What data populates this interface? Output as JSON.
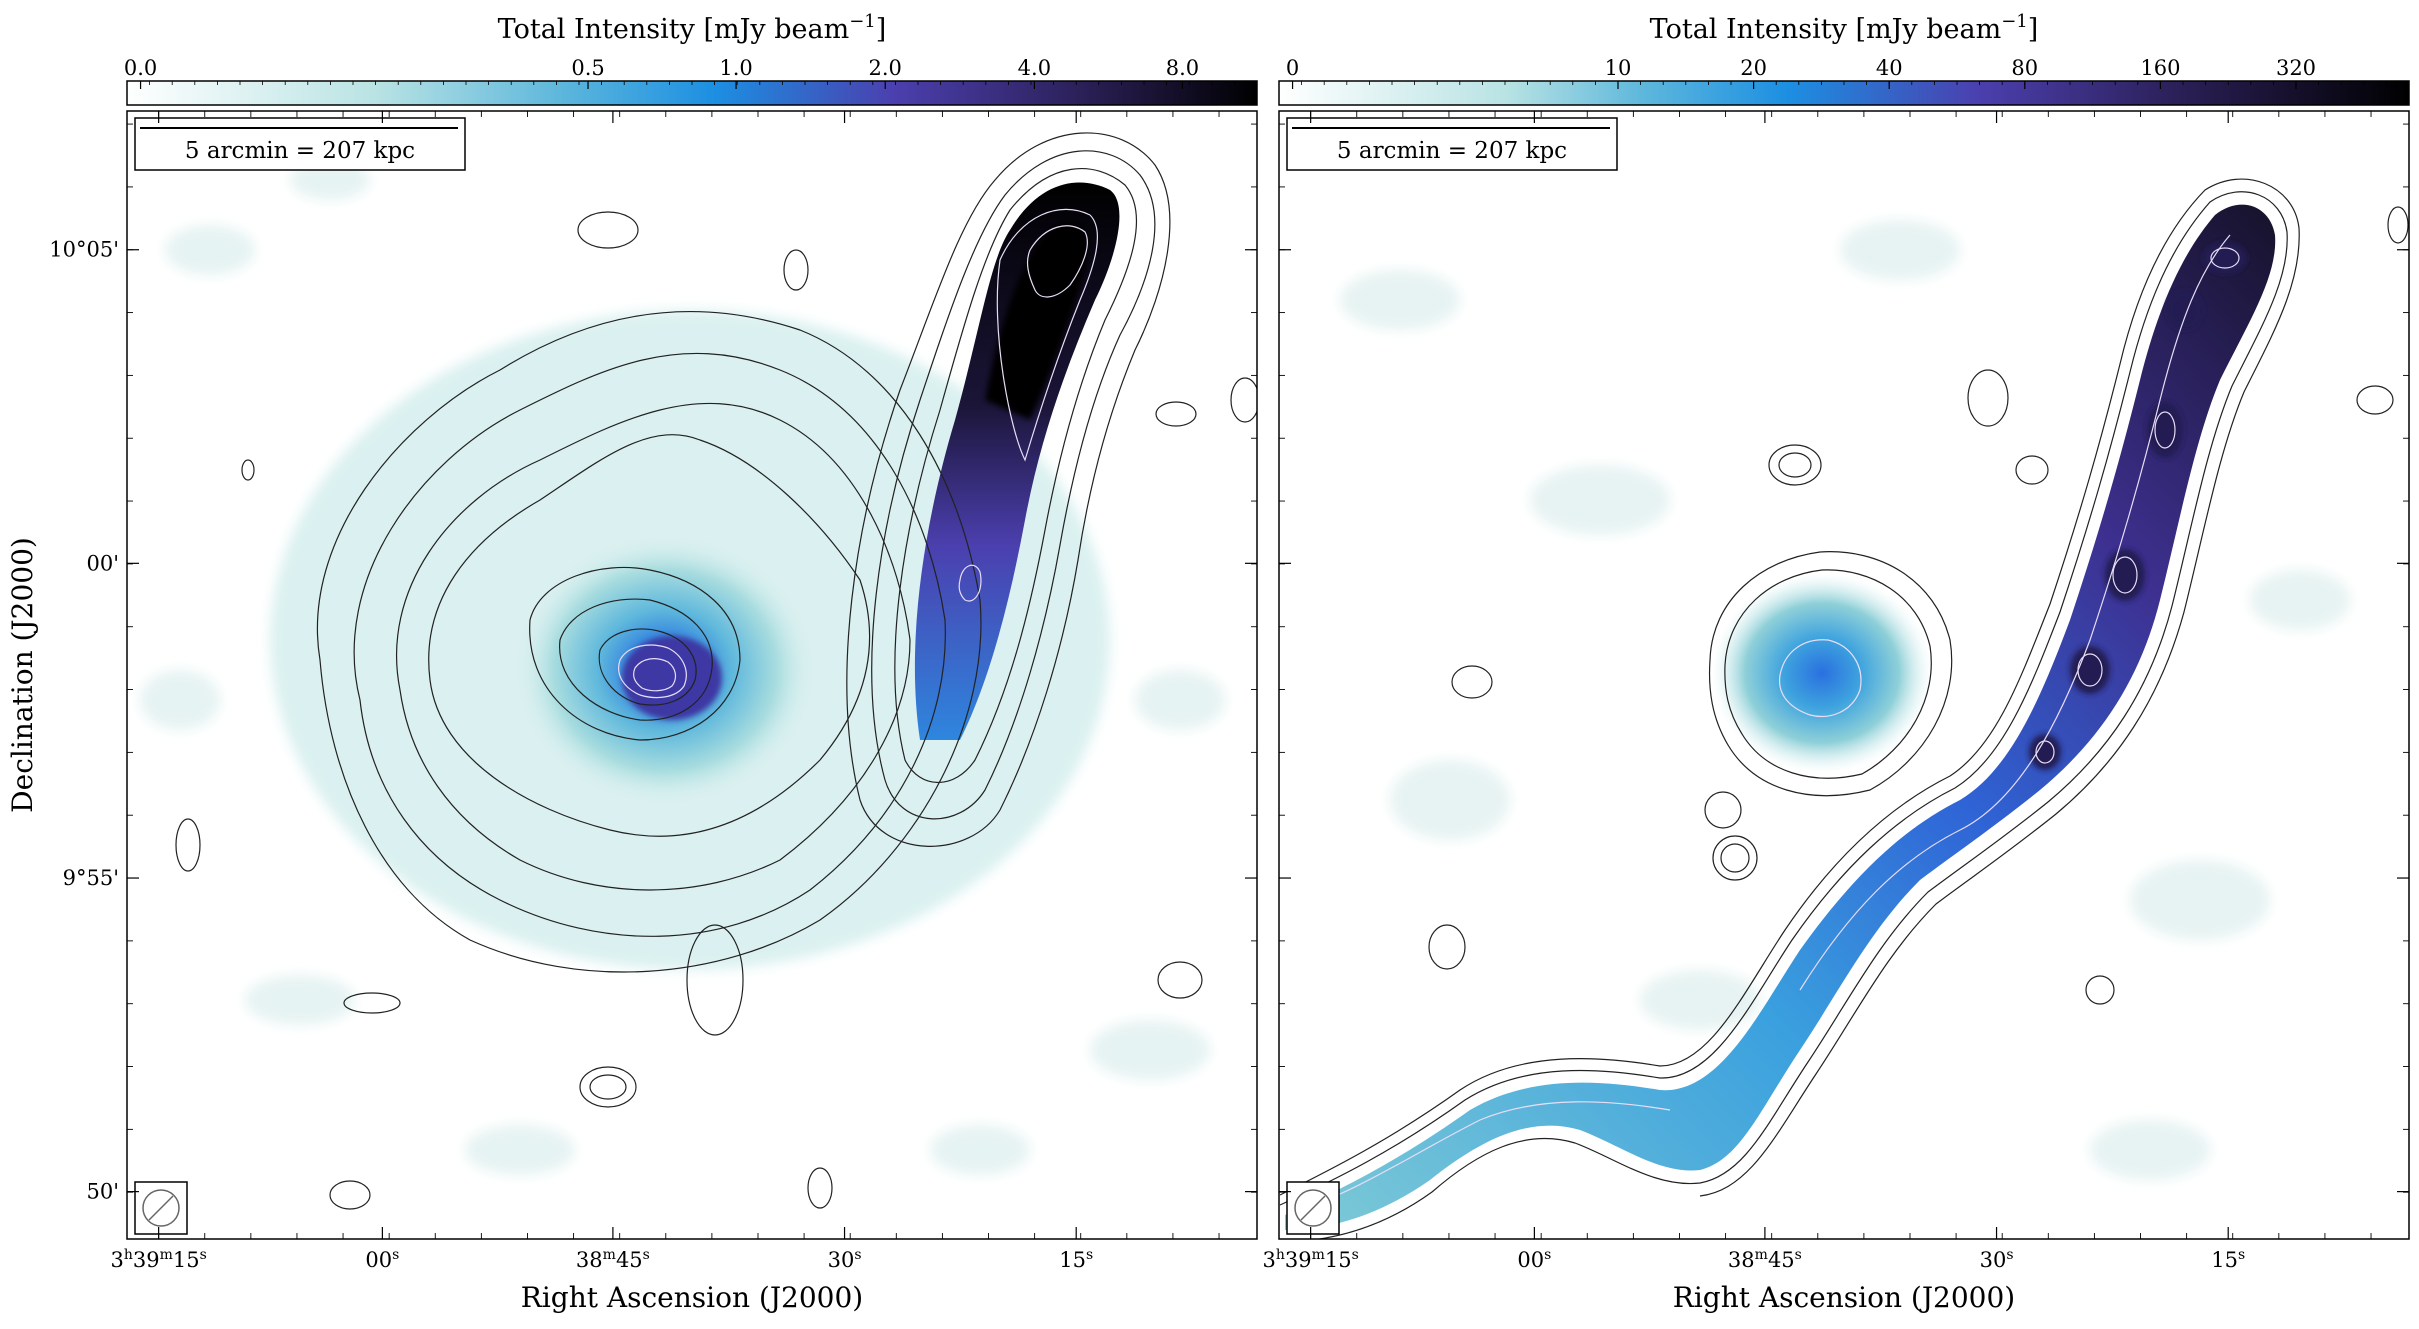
{
  "figure": {
    "colors": {
      "background": "#ffffff",
      "cmap_low": "#ffffff",
      "cmap_mid_teal": "#9fd6d8",
      "cmap_blue": "#1c8fe2",
      "cmap_violet": "#4b3fae",
      "cmap_dark": "#16122a",
      "contour_dark": "#222222",
      "contour_light": "#e8ddf6"
    },
    "panels": [
      {
        "id": "left",
        "colorbar": {
          "label_main": "Total Intensity [mJy beam",
          "label_exp": "−1",
          "label_close": "]",
          "ticks": [
            "0.0",
            "0.5",
            "1.0",
            "2.0",
            "4.0",
            "8.0"
          ],
          "tick_fractions": [
            0.012,
            0.408,
            0.539,
            0.671,
            0.803,
            0.934
          ]
        },
        "scalebar_label": "5 arcmin = 207 kpc",
        "beam_icon": "beam-ellipse-hatched-icon",
        "x_ticks": [
          {
            "base": "3",
            "sup1": "h",
            "mid": "39",
            "sup2": "m",
            "end": "15",
            "sup3": "s"
          },
          {
            "base": "00",
            "sup3": "s"
          },
          {
            "base": "38",
            "sup2": "m",
            "end": "45",
            "sup3": "s"
          },
          {
            "base": "30",
            "sup3": "s"
          },
          {
            "base": "15",
            "sup3": "s"
          }
        ],
        "x_tick_fractions": [
          0.028,
          0.226,
          0.43,
          0.635,
          0.84
        ],
        "y_ticks": [
          "10°05'",
          "00'",
          "9°55'",
          "50'"
        ],
        "y_tick_fractions": [
          0.123,
          0.401,
          0.68,
          0.958
        ],
        "xlabel": "Right Ascension (J2000)"
      },
      {
        "id": "right",
        "colorbar": {
          "label_main": "Total Intensity [mJy beam",
          "label_exp": "−1",
          "label_close": "]",
          "ticks": [
            "0",
            "10",
            "20",
            "40",
            "80",
            "160",
            "320"
          ],
          "tick_fractions": [
            0.012,
            0.3,
            0.42,
            0.54,
            0.66,
            0.78,
            0.9
          ]
        },
        "scalebar_label": "5 arcmin = 207 kpc",
        "beam_icon": "beam-ellipse-hatched-icon",
        "x_ticks": [
          {
            "base": "3",
            "sup1": "h",
            "mid": "39",
            "sup2": "m",
            "end": "15",
            "sup3": "s"
          },
          {
            "base": "00",
            "sup3": "s"
          },
          {
            "base": "38",
            "sup2": "m",
            "end": "45",
            "sup3": "s"
          },
          {
            "base": "30",
            "sup3": "s"
          },
          {
            "base": "15",
            "sup3": "s"
          }
        ],
        "x_tick_fractions": [
          0.028,
          0.226,
          0.43,
          0.635,
          0.84
        ],
        "xlabel": "Right Ascension (J2000)"
      }
    ],
    "ylabel": "Declination (J2000)"
  }
}
